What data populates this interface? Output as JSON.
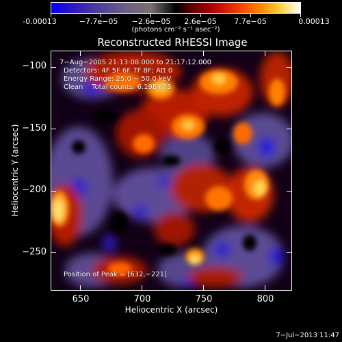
{
  "colorbar": {
    "tick_labels": [
      "-0.00013",
      "−7.7e−05",
      "−2.6e−05",
      "2.6e−05",
      "7.7e−05",
      "0.00013"
    ],
    "units": "(photons cm⁻² s⁻¹ asec⁻²)"
  },
  "title": "Reconstructed RHESSI Image",
  "info": {
    "time_range": "7−Aug−2005 21:13:08.000 to 21:17:12.000",
    "detectors": "Detectors: 4F 5F 6F 7F 8F; Att 0",
    "energy": "Energy Range: 25.0 − 50.0 keV",
    "clean": "Clean    Total counts: 6.19E+03",
    "peak": "Position of Peak = [632,−221]"
  },
  "axes": {
    "xlabel": "Heliocentric X (arcsec)",
    "ylabel": "Heliocentric Y (arcsec)",
    "x_ticks": [
      "650",
      "700",
      "750",
      "800"
    ],
    "y_ticks": [
      "−100",
      "−150",
      "−200",
      "−250"
    ]
  },
  "timestamp": "7−Jul−2013 11:47"
}
